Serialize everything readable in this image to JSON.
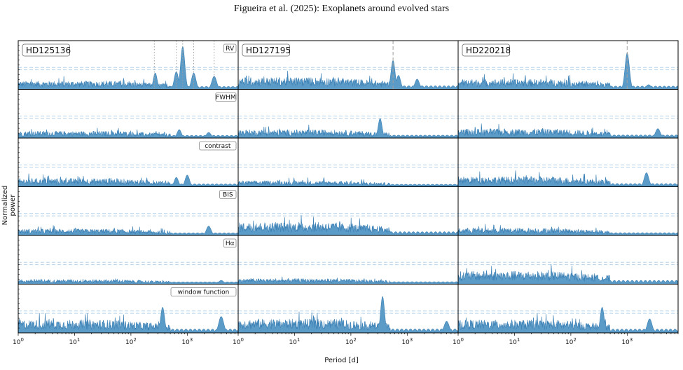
{
  "title": "Figueira et al. (2025): Exoplanets around evolved stars",
  "ylabel": "Normalized power",
  "xlabel": "Period [d]",
  "chart_data": {
    "type": "line",
    "title": "Figueira et al. (2025): Exoplanets around evolved stars",
    "xlabel": "Period [d]",
    "ylabel": "Normalized power",
    "xscale": "log",
    "xlim": [
      1,
      8000
    ],
    "x_tick_labels": [
      {
        "value": 1,
        "base": "10",
        "exp": "0"
      },
      {
        "value": 10,
        "base": "10",
        "exp": "1"
      },
      {
        "value": 100,
        "base": "10",
        "exp": "2"
      },
      {
        "value": 1000,
        "base": "10",
        "exp": "3"
      }
    ],
    "fill_color": "#5b9bc8",
    "line_color": "#3a7fb4",
    "threshold_color": "#b7d4ea",
    "marker_color": "#a0a0a0",
    "columns": [
      {
        "star": "HD125136",
        "rows": [
          {
            "label": "RV",
            "baseline": 0.18,
            "peaks": [
              [
                270,
                0.35
              ],
              [
                640,
                0.38
              ],
              [
                830,
                0.92
              ],
              [
                1300,
                0.35
              ],
              [
                3000,
                0.28
              ]
            ],
            "markers": [
              260,
              640,
              830,
              1300,
              3000
            ],
            "marker_style": "dotted"
          },
          {
            "label": "FWHM",
            "baseline": 0.15,
            "peaks": [
              [
                720,
                0.18
              ],
              [
                2400,
                0.12
              ]
            ],
            "markers": [],
            "marker_style": "none"
          },
          {
            "label": "contrast",
            "baseline": 0.18,
            "peaks": [
              [
                640,
                0.2
              ],
              [
                1000,
                0.25
              ]
            ],
            "markers": [],
            "marker_style": "none"
          },
          {
            "label": "BIS",
            "baseline": 0.14,
            "peaks": [
              [
                2400,
                0.2
              ]
            ],
            "markers": [],
            "marker_style": "none"
          },
          {
            "label": "Hα",
            "baseline": 0.1,
            "peaks": [
              [
                4000,
                0.08
              ]
            ],
            "markers": [],
            "marker_style": "none"
          },
          {
            "label": "window function",
            "baseline": 0.28,
            "peaks": [
              [
                365,
                0.55
              ],
              [
                4000,
                0.35
              ]
            ],
            "markers": [],
            "marker_style": "none"
          }
        ]
      },
      {
        "star": "HD127195",
        "rows": [
          {
            "label": "",
            "baseline": 0.26,
            "peaks": [
              [
                560,
                0.62
              ],
              [
                700,
                0.3
              ],
              [
                1500,
                0.22
              ]
            ],
            "markers": [
              560
            ],
            "marker_style": "dashed"
          },
          {
            "label": "",
            "baseline": 0.18,
            "peaks": [
              [
                330,
                0.42
              ]
            ],
            "markers": [],
            "marker_style": "none"
          },
          {
            "label": "",
            "baseline": 0.13,
            "peaks": [],
            "markers": [],
            "marker_style": "none"
          },
          {
            "label": "",
            "baseline": 0.28,
            "peaks": [],
            "markers": [],
            "marker_style": "none"
          },
          {
            "label": "",
            "baseline": 0.12,
            "peaks": [],
            "markers": [],
            "marker_style": "none"
          },
          {
            "label": "",
            "baseline": 0.3,
            "peaks": [
              [
                365,
                0.78
              ],
              [
                5000,
                0.25
              ]
            ],
            "markers": [],
            "marker_style": "none"
          }
        ]
      },
      {
        "star": "HD220218",
        "rows": [
          {
            "label": "",
            "baseline": 0.22,
            "peaks": [
              [
                1000,
                0.78
              ],
              [
                2400,
                0.1
              ]
            ],
            "markers": [
              1000
            ],
            "marker_style": "dashed"
          },
          {
            "label": "",
            "baseline": 0.2,
            "peaks": [
              [
                3500,
                0.2
              ]
            ],
            "markers": [],
            "marker_style": "none"
          },
          {
            "label": "",
            "baseline": 0.22,
            "peaks": [
              [
                2200,
                0.3
              ]
            ],
            "markers": [],
            "marker_style": "none"
          },
          {
            "label": "",
            "baseline": 0.16,
            "peaks": [],
            "markers": [],
            "marker_style": "none"
          },
          {
            "label": "",
            "baseline": 0.28,
            "peaks": [],
            "markers": [],
            "marker_style": "none"
          },
          {
            "label": "",
            "baseline": 0.28,
            "peaks": [
              [
                360,
                0.55
              ],
              [
                2500,
                0.3
              ]
            ],
            "markers": [],
            "marker_style": "none"
          }
        ]
      }
    ]
  }
}
